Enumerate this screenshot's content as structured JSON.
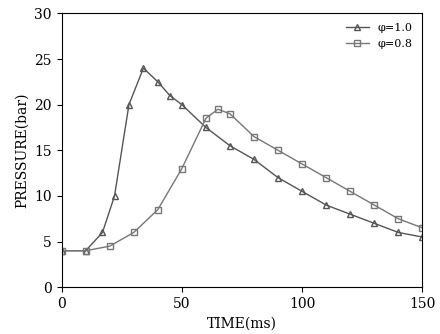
{
  "chart_data": {
    "type": "line",
    "x_label": "TIME(ms)",
    "y_label": "PRESSURE(bar)",
    "xlim": [
      0,
      150
    ],
    "xticks": [
      0,
      50,
      100,
      150
    ],
    "ylim": [
      0,
      30
    ],
    "yticks": [
      0,
      5,
      10,
      15,
      20,
      25,
      30
    ],
    "legend": "upper right",
    "grid": false,
    "series": [
      {
        "name": "φ=1.0",
        "color": "#555555",
        "marker": "triangle",
        "line_style": "solid",
        "x": [
          0,
          10,
          17,
          22,
          28,
          34,
          40,
          45,
          50,
          60,
          70,
          80,
          90,
          100,
          110,
          120,
          130,
          140,
          150
        ],
        "values": [
          4,
          4,
          6,
          10,
          20,
          24,
          22.5,
          21,
          20,
          17.5,
          15.5,
          14,
          12,
          10.5,
          9,
          8,
          7,
          6,
          5.5
        ]
      },
      {
        "name": "φ=0.8",
        "color": "#777777",
        "marker": "square",
        "line_style": "solid",
        "x": [
          0,
          10,
          20,
          30,
          40,
          50,
          60,
          65,
          70,
          80,
          90,
          100,
          110,
          120,
          130,
          140,
          150
        ],
        "values": [
          4,
          4,
          4.5,
          6,
          8.5,
          13,
          18.5,
          19.5,
          19,
          16.5,
          15,
          13.5,
          12,
          10.5,
          9,
          7.5,
          6.5
        ]
      }
    ]
  }
}
